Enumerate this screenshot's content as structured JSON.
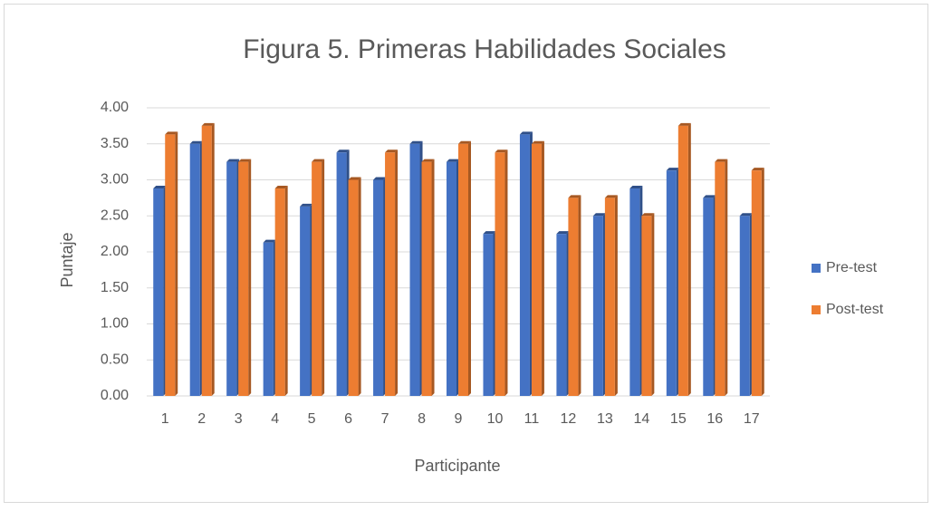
{
  "chart_data": {
    "type": "bar",
    "title": "Figura 5. Primeras Habilidades Sociales",
    "x_label": "Participante",
    "y_label": "Puntaje",
    "categories": [
      "1",
      "2",
      "3",
      "4",
      "5",
      "6",
      "7",
      "8",
      "9",
      "10",
      "11",
      "12",
      "13",
      "14",
      "15",
      "16",
      "17"
    ],
    "series": [
      {
        "name": "Pre-test",
        "color": "#4472c4",
        "values": [
          2.88,
          3.5,
          3.25,
          2.13,
          2.63,
          3.38,
          3.0,
          3.5,
          3.25,
          2.25,
          3.63,
          2.25,
          2.5,
          2.88,
          3.13,
          2.75,
          2.5
        ]
      },
      {
        "name": "Post-test",
        "color": "#ed7d31",
        "values": [
          3.63,
          3.75,
          3.25,
          2.88,
          3.25,
          3.0,
          3.38,
          3.25,
          3.5,
          3.38,
          3.5,
          2.75,
          2.75,
          2.5,
          3.75,
          3.25,
          3.13
        ]
      }
    ],
    "ylim": [
      0,
      4
    ],
    "yticks": [
      {
        "value": 0,
        "label": "0.00"
      },
      {
        "value": 0.5,
        "label": "0.50"
      },
      {
        "value": 1,
        "label": "1.00"
      },
      {
        "value": 1.5,
        "label": "1.50"
      },
      {
        "value": 2,
        "label": "2.00"
      },
      {
        "value": 2.5,
        "label": "2.50"
      },
      {
        "value": 3,
        "label": "3.00"
      },
      {
        "value": 3.5,
        "label": "3.50"
      },
      {
        "value": 4,
        "label": "4.00"
      }
    ],
    "grid": true,
    "legend": "right"
  }
}
